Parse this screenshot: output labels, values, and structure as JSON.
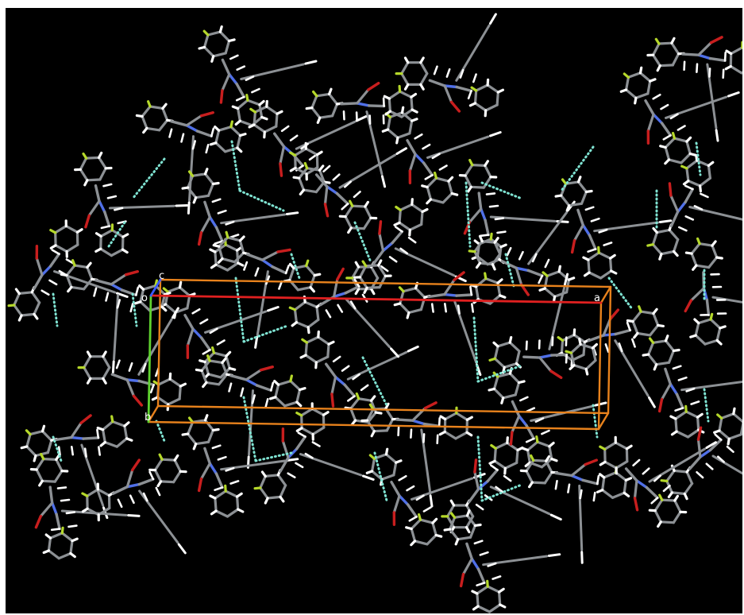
{
  "viewer": {
    "background": "#000000"
  },
  "colors": {
    "carbon": "#8c9094",
    "hydrogen": "#ffffff",
    "nitrogen": "#4f6fe8",
    "oxygen": "#c81e1e",
    "fluorine": "#b5d82a",
    "hbond": "#7fe3d2",
    "cell": "#e8821c",
    "axis_a": "#e02020",
    "axis_b": "#5fd22f",
    "axis_c": "#3b5bff"
  },
  "cell_labels": {
    "origin": "o",
    "a": "a",
    "b": "b",
    "c": "c"
  }
}
